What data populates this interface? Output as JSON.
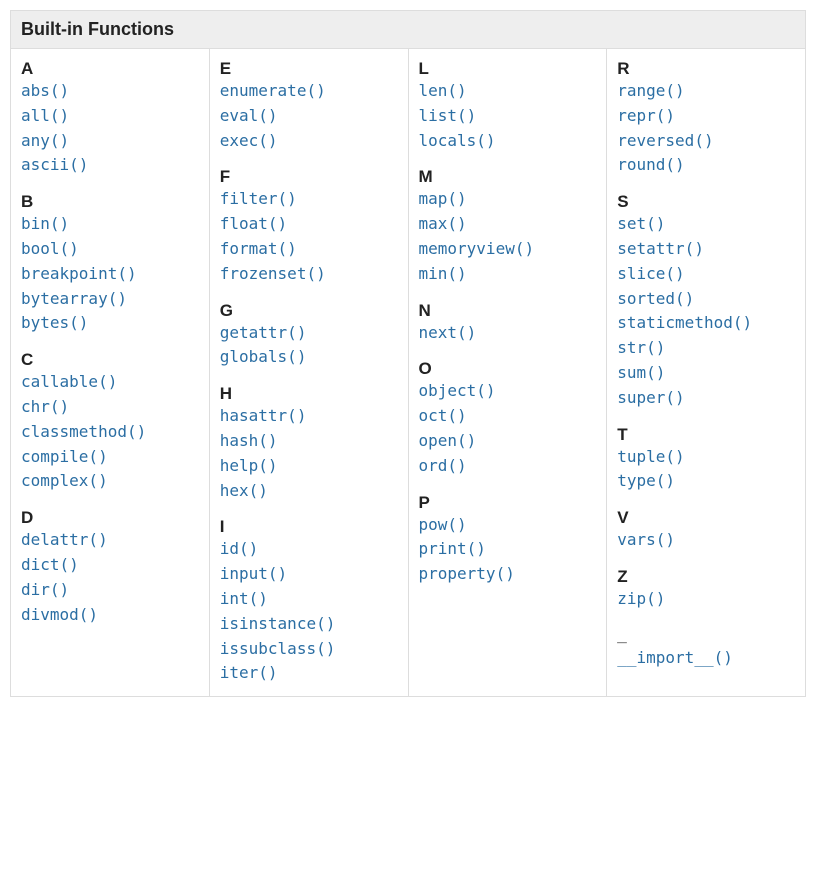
{
  "title": "Built-in Functions",
  "link_color": "#2b6ea3",
  "header_bg": "#eeeeee",
  "border_color": "#dddddd",
  "font_mono": "Consolas, Menlo, DejaVu Sans Mono, monospace",
  "columns": [
    [
      {
        "letter": "A",
        "items": [
          "abs()",
          "all()",
          "any()",
          "ascii()"
        ]
      },
      {
        "letter": "B",
        "items": [
          "bin()",
          "bool()",
          "breakpoint()",
          "bytearray()",
          "bytes()"
        ]
      },
      {
        "letter": "C",
        "items": [
          "callable()",
          "chr()",
          "classmethod()",
          "compile()",
          "complex()"
        ]
      },
      {
        "letter": "D",
        "items": [
          "delattr()",
          "dict()",
          "dir()",
          "divmod()"
        ]
      }
    ],
    [
      {
        "letter": "E",
        "items": [
          "enumerate()",
          "eval()",
          "exec()"
        ]
      },
      {
        "letter": "F",
        "items": [
          "filter()",
          "float()",
          "format()",
          "frozenset()"
        ]
      },
      {
        "letter": "G",
        "items": [
          "getattr()",
          "globals()"
        ]
      },
      {
        "letter": "H",
        "items": [
          "hasattr()",
          "hash()",
          "help()",
          "hex()"
        ]
      },
      {
        "letter": "I",
        "items": [
          "id()",
          "input()",
          "int()",
          "isinstance()",
          "issubclass()",
          "iter()"
        ]
      }
    ],
    [
      {
        "letter": "L",
        "items": [
          "len()",
          "list()",
          "locals()"
        ]
      },
      {
        "letter": "M",
        "items": [
          "map()",
          "max()",
          "memoryview()",
          "min()"
        ]
      },
      {
        "letter": "N",
        "items": [
          "next()"
        ]
      },
      {
        "letter": "O",
        "items": [
          "object()",
          "oct()",
          "open()",
          "ord()"
        ]
      },
      {
        "letter": "P",
        "items": [
          "pow()",
          "print()",
          "property()"
        ]
      }
    ],
    [
      {
        "letter": "R",
        "items": [
          "range()",
          "repr()",
          "reversed()",
          "round()"
        ]
      },
      {
        "letter": "S",
        "items": [
          "set()",
          "setattr()",
          "slice()",
          "sorted()",
          "staticmethod()",
          "str()",
          "sum()",
          "super()"
        ]
      },
      {
        "letter": "T",
        "items": [
          "tuple()",
          "type()"
        ]
      },
      {
        "letter": "V",
        "items": [
          "vars()"
        ]
      },
      {
        "letter": "Z",
        "items": [
          "zip()"
        ]
      },
      {
        "letter": "_",
        "items": [
          "__import__()"
        ]
      }
    ]
  ]
}
